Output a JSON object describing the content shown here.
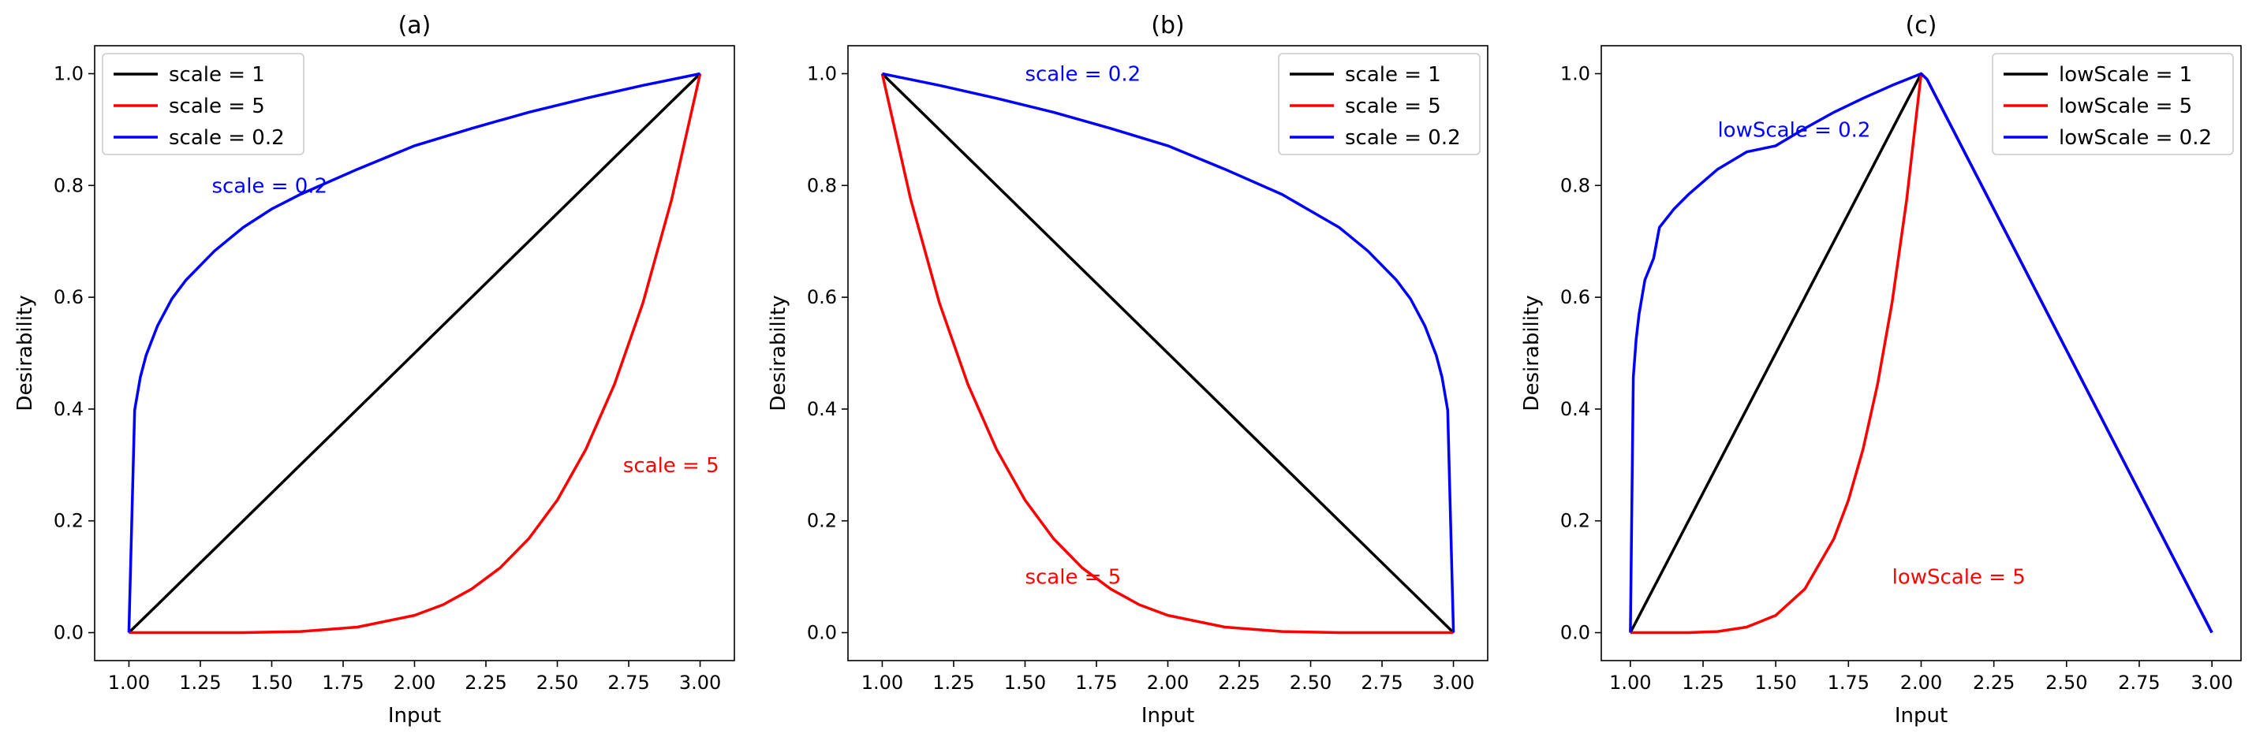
{
  "chart_data": [
    {
      "type": "line",
      "title": "(a)",
      "xlabel": "Input",
      "ylabel": "Desirability",
      "xlim": [
        0.88,
        3.12
      ],
      "ylim": [
        -0.05,
        1.05
      ],
      "xticks": [
        "1.00",
        "1.25",
        "1.50",
        "1.75",
        "2.00",
        "2.25",
        "2.50",
        "2.75",
        "3.00"
      ],
      "yticks": [
        "0.0",
        "0.2",
        "0.4",
        "0.6",
        "0.8",
        "1.0"
      ],
      "legend_position": "top-left",
      "series": [
        {
          "name": "scale = 1",
          "color": "#000000",
          "x": [
            1.0,
            1.1,
            1.2,
            1.3,
            1.4,
            1.5,
            1.6,
            1.7,
            1.8,
            1.9,
            2.0,
            2.1,
            2.2,
            2.3,
            2.4,
            2.5,
            2.6,
            2.7,
            2.8,
            2.9,
            3.0
          ],
          "y": [
            0.0,
            0.05,
            0.1,
            0.15,
            0.2,
            0.25,
            0.3,
            0.35,
            0.4,
            0.45,
            0.5,
            0.55,
            0.6,
            0.65,
            0.7,
            0.75,
            0.8,
            0.85,
            0.9,
            0.95,
            1.0
          ]
        },
        {
          "name": "scale = 5",
          "color": "#ff0000",
          "x": [
            1.0,
            1.2,
            1.4,
            1.6,
            1.8,
            2.0,
            2.1,
            2.2,
            2.3,
            2.4,
            2.5,
            2.6,
            2.7,
            2.8,
            2.9,
            3.0
          ],
          "y": [
            0.0,
            0.0,
            0.0,
            0.002,
            0.01,
            0.031,
            0.05,
            0.078,
            0.116,
            0.168,
            0.237,
            0.328,
            0.444,
            0.59,
            0.774,
            1.0
          ]
        },
        {
          "name": "scale = 0.2",
          "color": "#0000ff",
          "x": [
            1.0,
            1.02,
            1.04,
            1.06,
            1.1,
            1.15,
            1.2,
            1.3,
            1.4,
            1.5,
            1.6,
            1.8,
            2.0,
            2.2,
            2.4,
            2.6,
            2.8,
            3.0
          ],
          "y": [
            0.0,
            0.398,
            0.457,
            0.496,
            0.549,
            0.597,
            0.631,
            0.683,
            0.725,
            0.758,
            0.784,
            0.829,
            0.871,
            0.902,
            0.931,
            0.956,
            0.979,
            1.0
          ]
        }
      ],
      "annotations": [
        {
          "text": "scale = 0.2",
          "x": 1.29,
          "y": 0.8,
          "color": "#0000ff"
        },
        {
          "text": "scale = 5",
          "x": 2.73,
          "y": 0.3,
          "color": "#ff0000"
        }
      ]
    },
    {
      "type": "line",
      "title": "(b)",
      "xlabel": "Input",
      "ylabel": "Desirability",
      "xlim": [
        0.88,
        3.12
      ],
      "ylim": [
        -0.05,
        1.05
      ],
      "xticks": [
        "1.00",
        "1.25",
        "1.50",
        "1.75",
        "2.00",
        "2.25",
        "2.50",
        "2.75",
        "3.00"
      ],
      "yticks": [
        "0.0",
        "0.2",
        "0.4",
        "0.6",
        "0.8",
        "1.0"
      ],
      "legend_position": "top-right",
      "series": [
        {
          "name": "scale = 1",
          "color": "#000000",
          "x": [
            1.0,
            1.5,
            2.0,
            2.5,
            3.0
          ],
          "y": [
            1.0,
            0.75,
            0.5,
            0.25,
            0.0
          ]
        },
        {
          "name": "scale = 5",
          "color": "#ff0000",
          "x": [
            1.0,
            1.1,
            1.2,
            1.3,
            1.4,
            1.5,
            1.6,
            1.7,
            1.8,
            1.9,
            2.0,
            2.2,
            2.4,
            2.6,
            2.8,
            3.0
          ],
          "y": [
            1.0,
            0.774,
            0.59,
            0.444,
            0.328,
            0.237,
            0.168,
            0.116,
            0.078,
            0.05,
            0.031,
            0.01,
            0.002,
            0.0,
            0.0,
            0.0
          ]
        },
        {
          "name": "scale = 0.2",
          "color": "#0000ff",
          "x": [
            1.0,
            1.2,
            1.4,
            1.6,
            1.8,
            2.0,
            2.2,
            2.4,
            2.6,
            2.7,
            2.8,
            2.85,
            2.9,
            2.94,
            2.96,
            2.98,
            3.0
          ],
          "y": [
            1.0,
            0.979,
            0.956,
            0.931,
            0.902,
            0.871,
            0.829,
            0.784,
            0.725,
            0.683,
            0.631,
            0.597,
            0.549,
            0.496,
            0.457,
            0.398,
            0.0
          ]
        }
      ],
      "annotations": [
        {
          "text": "scale = 0.2",
          "x": 1.5,
          "y": 1.0,
          "color": "#0000ff"
        },
        {
          "text": "scale = 5",
          "x": 1.5,
          "y": 0.1,
          "color": "#ff0000"
        }
      ]
    },
    {
      "type": "line",
      "title": "(c)",
      "xlabel": "Input",
      "ylabel": "Desirability",
      "xlim": [
        0.9,
        3.1
      ],
      "ylim": [
        -0.05,
        1.05
      ],
      "xticks": [
        "1.00",
        "1.25",
        "1.50",
        "1.75",
        "2.00",
        "2.25",
        "2.50",
        "2.75",
        "3.00"
      ],
      "yticks": [
        "0.0",
        "0.2",
        "0.4",
        "0.6",
        "0.8",
        "1.0"
      ],
      "legend_position": "top-right",
      "series": [
        {
          "name": "lowScale = 1",
          "color": "#000000",
          "x": [
            1.0,
            2.0,
            2.02,
            3.0
          ],
          "y": [
            0.0,
            1.0,
            0.99,
            0.0
          ]
        },
        {
          "name": "lowScale = 5",
          "color": "#ff0000",
          "x": [
            1.0,
            1.2,
            1.3,
            1.4,
            1.5,
            1.6,
            1.7,
            1.75,
            1.8,
            1.85,
            1.9,
            1.95,
            2.0,
            2.02,
            3.0
          ],
          "y": [
            0.0,
            0.0,
            0.002,
            0.01,
            0.031,
            0.078,
            0.168,
            0.237,
            0.328,
            0.444,
            0.59,
            0.774,
            1.0,
            0.99,
            0.0
          ]
        },
        {
          "name": "lowScale = 0.2",
          "color": "#0000ff",
          "x": [
            1.0,
            1.01,
            1.02,
            1.03,
            1.05,
            1.08,
            1.1,
            1.15,
            1.2,
            1.3,
            1.4,
            1.5,
            1.6,
            1.7,
            1.8,
            1.9,
            2.0,
            2.02,
            3.0
          ],
          "y": [
            0.0,
            0.457,
            0.525,
            0.57,
            0.631,
            0.67,
            0.725,
            0.758,
            0.784,
            0.829,
            0.86,
            0.871,
            0.902,
            0.931,
            0.956,
            0.979,
            1.0,
            0.99,
            0.0
          ]
        }
      ],
      "annotations": [
        {
          "text": "lowScale = 0.2",
          "x": 1.3,
          "y": 0.9,
          "color": "#0000ff"
        },
        {
          "text": "lowScale = 5",
          "x": 1.9,
          "y": 0.1,
          "color": "#ff0000"
        }
      ]
    }
  ]
}
